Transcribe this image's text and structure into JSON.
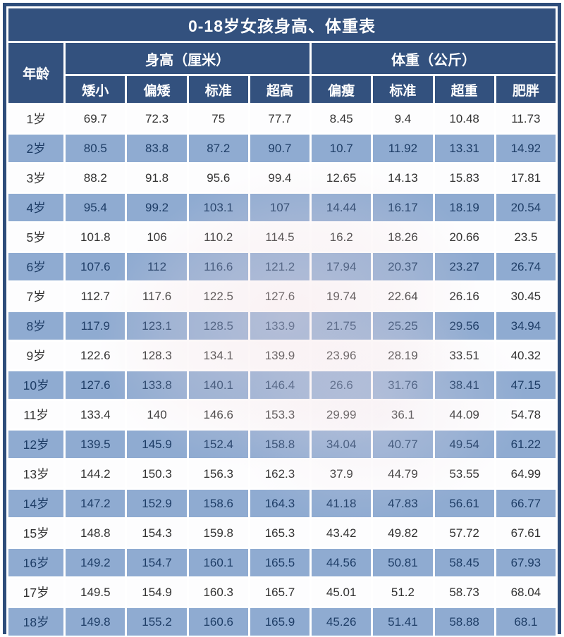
{
  "title": "0-18岁女孩身高、体重表",
  "colors": {
    "header_bg": "#33517e",
    "outer_border": "#2e4d7a",
    "row_white_bg": "#fdfdfe",
    "row_blue_bg": "#8fabd1",
    "row_white_text": "#333333",
    "row_blue_text": "#1e3d66",
    "header_text": "#ffffff"
  },
  "chart_data": {
    "type": "table",
    "title": "0-18岁女孩身高、体重表",
    "column_groups": [
      {
        "label": "身高（厘米）",
        "span": 4
      },
      {
        "label": "体重（公斤）",
        "span": 4
      }
    ],
    "columns": [
      "年龄",
      "矮小",
      "偏矮",
      "标准",
      "超高",
      "偏瘦",
      "标准",
      "超重",
      "肥胖"
    ],
    "layout": {
      "alternating_rows": true,
      "grid": "white-gaps",
      "legend": "none"
    },
    "rows": [
      [
        "1岁",
        "69.7",
        "72.3",
        "75",
        "77.7",
        "8.45",
        "9.4",
        "10.48",
        "11.73"
      ],
      [
        "2岁",
        "80.5",
        "83.8",
        "87.2",
        "90.7",
        "10.7",
        "11.92",
        "13.31",
        "14.92"
      ],
      [
        "3岁",
        "88.2",
        "91.8",
        "95.6",
        "99.4",
        "12.65",
        "14.13",
        "15.83",
        "17.81"
      ],
      [
        "4岁",
        "95.4",
        "99.2",
        "103.1",
        "107",
        "14.44",
        "16.17",
        "18.19",
        "20.54"
      ],
      [
        "5岁",
        "101.8",
        "106",
        "110.2",
        "114.5",
        "16.2",
        "18.26",
        "20.66",
        "23.5"
      ],
      [
        "6岁",
        "107.6",
        "112",
        "116.6",
        "121.2",
        "17.94",
        "20.37",
        "23.27",
        "26.74"
      ],
      [
        "7岁",
        "112.7",
        "117.6",
        "122.5",
        "127.6",
        "19.74",
        "22.64",
        "26.16",
        "30.45"
      ],
      [
        "8岁",
        "117.9",
        "123.1",
        "128.5",
        "133.9",
        "21.75",
        "25.25",
        "29.56",
        "34.94"
      ],
      [
        "9岁",
        "122.6",
        "128.3",
        "134.1",
        "139.9",
        "23.96",
        "28.19",
        "33.51",
        "40.32"
      ],
      [
        "10岁",
        "127.6",
        "133.8",
        "140.1",
        "146.4",
        "26.6",
        "31.76",
        "38.41",
        "47.15"
      ],
      [
        "11岁",
        "133.4",
        "140",
        "146.6",
        "153.3",
        "29.99",
        "36.1",
        "44.09",
        "54.78"
      ],
      [
        "12岁",
        "139.5",
        "145.9",
        "152.4",
        "158.8",
        "34.04",
        "40.77",
        "49.54",
        "61.22"
      ],
      [
        "13岁",
        "144.2",
        "150.3",
        "156.3",
        "162.3",
        "37.9",
        "44.79",
        "53.55",
        "64.99"
      ],
      [
        "14岁",
        "147.2",
        "152.9",
        "158.6",
        "164.3",
        "41.18",
        "47.83",
        "56.61",
        "66.77"
      ],
      [
        "15岁",
        "148.8",
        "154.3",
        "159.8",
        "165.3",
        "43.42",
        "49.82",
        "57.72",
        "67.61"
      ],
      [
        "16岁",
        "149.2",
        "154.7",
        "160.1",
        "165.5",
        "44.56",
        "50.81",
        "58.45",
        "67.93"
      ],
      [
        "17岁",
        "149.5",
        "154.9",
        "160.3",
        "165.7",
        "45.01",
        "51.2",
        "58.73",
        "68.04"
      ],
      [
        "18岁",
        "149.8",
        "155.2",
        "160.6",
        "165.9",
        "45.26",
        "51.41",
        "58.88",
        "68.1"
      ]
    ]
  }
}
